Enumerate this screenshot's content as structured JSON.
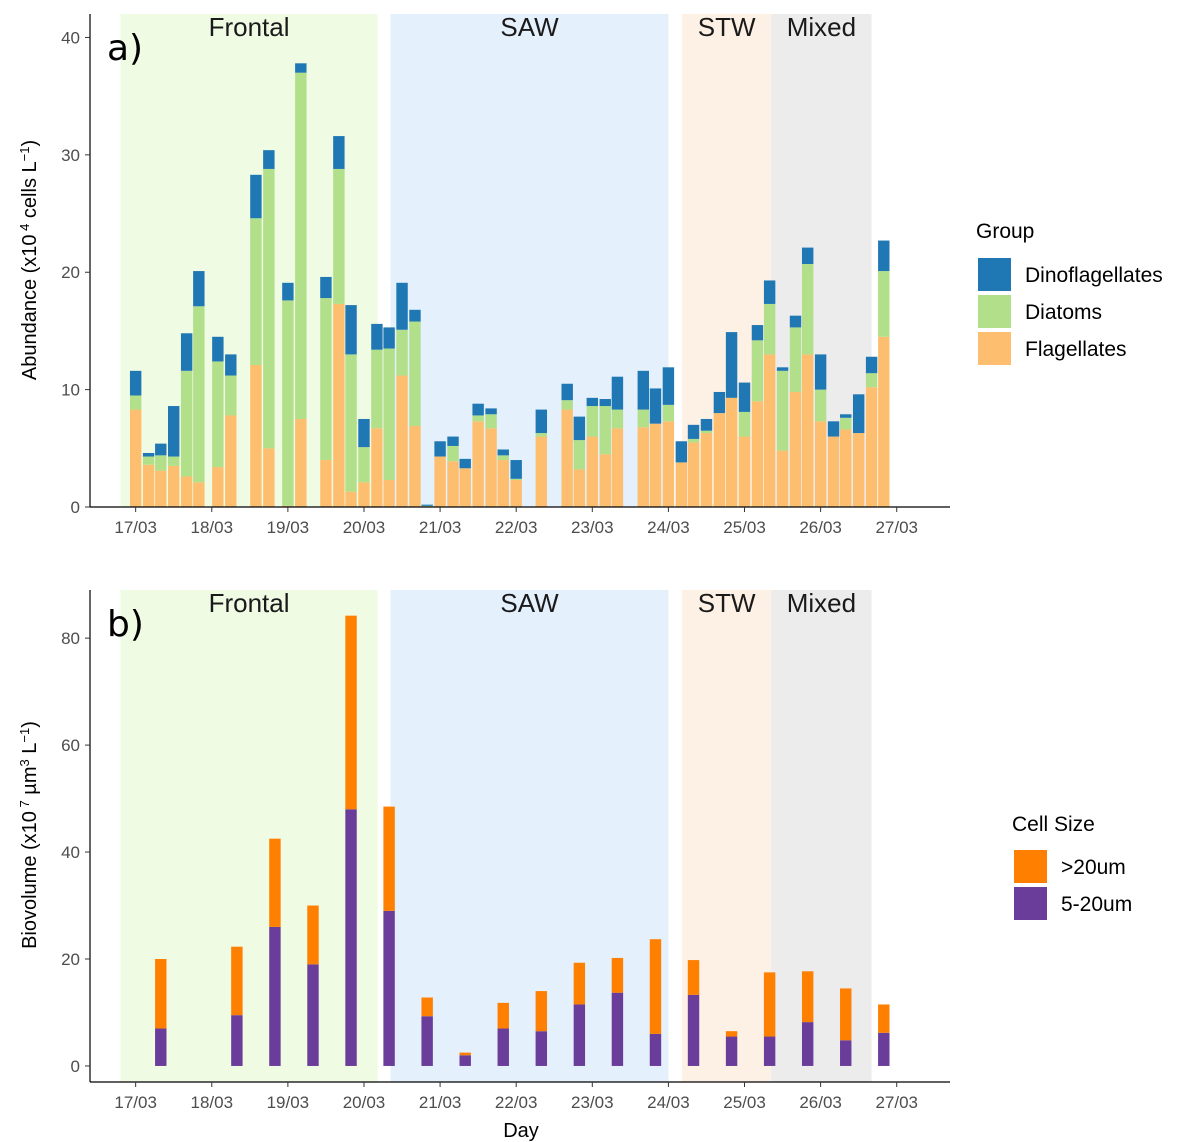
{
  "colors": {
    "dinoflagellates": "#1f78b4",
    "diatoms": "#b2df8a",
    "flagellates": "#fdbf6f",
    "gt20": "#ff7f00",
    "5to20": "#6a3d9a",
    "frontal_bg": "#f0fbe4",
    "saw_bg": "#e4f0fc",
    "stw_bg": "#fdf0e4",
    "mixed_bg": "#ececec"
  },
  "x_label": "Day",
  "regions": [
    {
      "name": "Frontal",
      "start": 16.8,
      "end": 20.18,
      "color": "frontal_bg"
    },
    {
      "name": "SAW",
      "start": 20.35,
      "end": 24.0,
      "color": "saw_bg"
    },
    {
      "name": "STW",
      "start": 24.18,
      "end": 25.35,
      "color": "stw_bg"
    },
    {
      "name": "Mixed",
      "start": 25.35,
      "end": 26.67,
      "color": "mixed_bg"
    }
  ],
  "chart_data": [
    {
      "type": "bar",
      "stacked": true,
      "panel_label": "a)",
      "ylabel_main": "Abundance (x10",
      "ylabel_exp": "4",
      "ylabel_tail": " cells L",
      "ylabel_unit_exp": "−1",
      "ylabel_close": ")",
      "xlabel": "",
      "ylim": [
        0,
        42
      ],
      "y_ticks": [
        0,
        10,
        20,
        30,
        40
      ],
      "xlim": [
        16.4,
        27.7
      ],
      "x_ticks": [
        17,
        18,
        19,
        20,
        21,
        22,
        23,
        24,
        25,
        26,
        27
      ],
      "x_tick_labels": [
        "17/03",
        "18/03",
        "19/03",
        "20/03",
        "21/03",
        "22/03",
        "23/03",
        "24/03",
        "25/03",
        "26/03",
        "27/03"
      ],
      "bar_width": 0.15,
      "legend_title": "Group",
      "legend_position": "right",
      "series": [
        {
          "name": "Dinoflagellates",
          "color": "dinoflagellates"
        },
        {
          "name": "Diatoms",
          "color": "diatoms"
        },
        {
          "name": "Flagellates",
          "color": "flagellates"
        }
      ],
      "x": [
        17.0,
        17.17,
        17.33,
        17.5,
        17.67,
        17.83,
        18.08,
        18.25,
        18.58,
        18.75,
        19.0,
        19.17,
        19.5,
        19.67,
        19.83,
        20.0,
        20.17,
        20.33,
        20.5,
        20.67,
        20.83,
        21.0,
        21.17,
        21.33,
        21.5,
        21.67,
        21.83,
        22.0,
        22.33,
        22.67,
        22.83,
        23.0,
        23.17,
        23.33,
        23.67,
        23.83,
        24.0,
        24.17,
        24.33,
        24.5,
        24.67,
        24.83,
        25.0,
        25.17,
        25.33,
        25.5,
        25.67,
        25.83,
        26.0,
        26.17,
        26.33,
        26.5,
        26.67,
        26.83
      ],
      "values": {
        "Flagellates": [
          8.3,
          3.6,
          3.1,
          3.5,
          2.6,
          2.1,
          3.4,
          7.8,
          12.1,
          5.0,
          0.1,
          7.5,
          4.0,
          17.3,
          1.3,
          2.1,
          6.7,
          2.3,
          11.2,
          6.9,
          0.0,
          4.3,
          3.9,
          3.3,
          7.3,
          6.7,
          4.0,
          2.3,
          6.0,
          8.3,
          3.2,
          6.0,
          4.5,
          6.7,
          6.8,
          7.1,
          7.3,
          3.8,
          5.5,
          6.3,
          8.0,
          9.3,
          6.0,
          9.0,
          13.0,
          4.8,
          9.8,
          13.0,
          7.3,
          6.0,
          6.6,
          6.3,
          10.2,
          14.5
        ],
        "Diatoms": [
          1.2,
          0.7,
          1.3,
          0.8,
          9.0,
          15.0,
          9.0,
          3.4,
          12.5,
          23.8,
          17.5,
          29.5,
          13.8,
          11.5,
          11.7,
          3.0,
          6.7,
          11.2,
          3.9,
          8.9,
          0.1,
          0.0,
          1.3,
          0.0,
          0.5,
          1.2,
          0.4,
          0.1,
          0.3,
          0.8,
          2.5,
          2.6,
          4.1,
          1.6,
          1.5,
          0.0,
          1.4,
          0.0,
          0.3,
          0.2,
          0.0,
          0.0,
          2.1,
          5.2,
          4.3,
          6.8,
          5.5,
          7.7,
          2.7,
          0.0,
          1.0,
          0.0,
          1.2,
          5.6
        ],
        "Dinoflagellates": [
          2.1,
          0.3,
          1.0,
          4.3,
          3.2,
          3.0,
          2.1,
          1.8,
          3.7,
          1.6,
          1.5,
          0.8,
          1.8,
          2.8,
          4.2,
          2.4,
          2.2,
          1.8,
          4.0,
          1.0,
          0.1,
          1.3,
          0.8,
          0.8,
          1.0,
          0.5,
          0.5,
          1.6,
          2.0,
          1.4,
          2.0,
          0.7,
          0.6,
          2.8,
          3.3,
          3.0,
          3.2,
          1.8,
          1.2,
          1.0,
          1.8,
          5.6,
          2.5,
          1.3,
          2.0,
          0.3,
          1.0,
          1.4,
          3.0,
          1.3,
          0.3,
          3.3,
          1.4,
          2.6
        ]
      }
    },
    {
      "type": "bar",
      "stacked": true,
      "panel_label": "b)",
      "ylabel_main": "Biovolume (x10",
      "ylabel_exp": "7",
      "ylabel_tail": " µm",
      "ylabel_mid_exp": "3",
      "ylabel_tail2": " L",
      "ylabel_unit_exp": "−1",
      "ylabel_close": ")",
      "xlabel": "Day",
      "ylim": [
        -3,
        89
      ],
      "y_ticks": [
        0,
        20,
        40,
        60,
        80
      ],
      "xlim": [
        16.4,
        27.7
      ],
      "x_ticks": [
        17,
        18,
        19,
        20,
        21,
        22,
        23,
        24,
        25,
        26,
        27
      ],
      "x_tick_labels": [
        "17/03",
        "18/03",
        "19/03",
        "20/03",
        "21/03",
        "22/03",
        "23/03",
        "24/03",
        "25/03",
        "26/03",
        "27/03"
      ],
      "bar_width": 0.15,
      "legend_title": "Cell Size",
      "legend_position": "right",
      "series": [
        {
          "name": ">20um",
          "color": "gt20"
        },
        {
          "name": "5-20um",
          "color": "5to20"
        }
      ],
      "x": [
        17.33,
        18.33,
        18.83,
        19.33,
        19.83,
        20.33,
        20.83,
        21.33,
        21.83,
        22.33,
        22.83,
        23.33,
        23.83,
        24.33,
        24.83,
        25.33,
        25.83,
        26.33,
        26.83
      ],
      "values": {
        "5-20um": [
          7.0,
          9.5,
          26.0,
          19.0,
          48.0,
          29.0,
          9.3,
          2.0,
          7.0,
          6.5,
          11.5,
          13.7,
          6.0,
          13.3,
          5.5,
          5.5,
          8.2,
          4.8,
          6.2
        ],
        ">20um": [
          13.0,
          12.8,
          16.5,
          11.0,
          36.2,
          19.5,
          3.5,
          0.5,
          4.8,
          7.5,
          7.8,
          6.5,
          17.7,
          6.5,
          1.0,
          12.0,
          9.5,
          9.7,
          5.3
        ]
      }
    }
  ]
}
